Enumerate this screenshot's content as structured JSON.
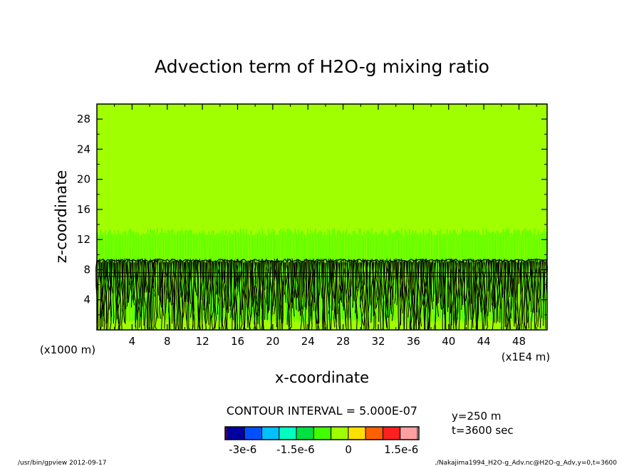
{
  "chart_data": {
    "type": "heatmap",
    "title": "Advection term of H2O-g mixing ratio",
    "xlabel": "x-coordinate",
    "ylabel": "z-coordinate",
    "x_unit_left": "(x1000 m)",
    "x_unit_right": "(x1E4 m)",
    "xlim": [
      0,
      51.2
    ],
    "ylim": [
      0,
      30
    ],
    "x_ticks": [
      4,
      8,
      12,
      16,
      20,
      24,
      28,
      32,
      36,
      40,
      44,
      48
    ],
    "y_ticks": [
      4,
      8,
      12,
      16,
      20,
      24,
      28
    ],
    "x_tick_labels": [
      "4",
      "8",
      "12",
      "16",
      "20",
      "24",
      "28",
      "32",
      "36",
      "40",
      "44",
      "48"
    ],
    "y_tick_labels": [
      "4",
      "8",
      "12",
      "16",
      "20",
      "24",
      "28"
    ],
    "background_value": 0,
    "field_regions": [
      {
        "z_from": 13.5,
        "z_to": 30,
        "description": "near-zero field",
        "value": 0
      },
      {
        "z_from": 9.5,
        "z_to": 13.5,
        "description": "small-amplitude streaks",
        "value": 0
      },
      {
        "z_from": 0,
        "z_to": 9.5,
        "description": "dense contour lines",
        "value": 0
      }
    ],
    "contour_interval": "CONTOUR INTERVAL = 5.000E-07",
    "colorbar": {
      "colors": [
        "#0000a0",
        "#0050ff",
        "#00c0ff",
        "#00ffc0",
        "#00e040",
        "#40ff00",
        "#a0ff00",
        "#ffe000",
        "#ff6000",
        "#ff2020",
        "#ffa0a0"
      ],
      "tick_labels": [
        "-3e-6",
        "-1.5e-6",
        "0",
        "1.5e-6"
      ],
      "tick_values": [
        -3e-06,
        -1.5e-06,
        0,
        1.5e-06
      ],
      "range": [
        -3.5e-06,
        2e-06
      ]
    },
    "info_lines": [
      "y=250 m",
      "t=3600 sec"
    ],
    "footer_left": "/usr/bin/gpview   2012-09-17",
    "footer_right": "./Nakajima1994_H2O-g_Adv.nc@H2O-g_Adv,y=0,t=3600"
  },
  "colors": {
    "field": "#a0ff00",
    "streak": "#40ff00",
    "contour": "#000000"
  }
}
